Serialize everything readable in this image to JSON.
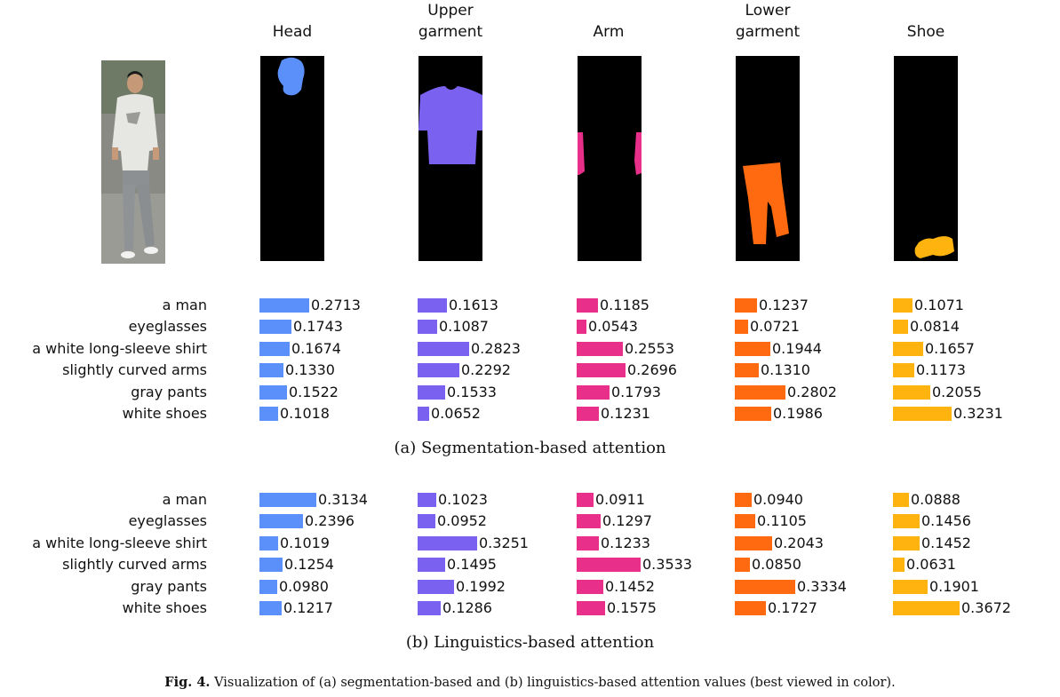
{
  "columns": [
    {
      "line1": "",
      "line2": "Head",
      "color": "#5B8FF9"
    },
    {
      "line1": "Upper",
      "line2": "garment",
      "color": "#7B61F0"
    },
    {
      "line1": "",
      "line2": "Arm",
      "color": "#E8308A"
    },
    {
      "line1": "Lower",
      "line2": "garment",
      "color": "#FF6A10"
    },
    {
      "line1": "",
      "line2": "Shoe",
      "color": "#FFB30F"
    }
  ],
  "caption": {
    "label": "Fig. 4.",
    "text": "Visualization of (a) segmentation-based and (b) linguistics-based attention values (best viewed in color)."
  },
  "chart_data": [
    {
      "type": "bar",
      "title": "(a) Segmentation-based attention",
      "categories": [
        "a man",
        "eyeglasses",
        "a white long-sleeve shirt",
        "slightly curved arms",
        "gray pants",
        "white shoes"
      ],
      "series": [
        {
          "name": "Head",
          "values": [
            "0.2713",
            "0.1743",
            "0.1674",
            "0.1330",
            "0.1522",
            "0.1018"
          ]
        },
        {
          "name": "Upper garment",
          "values": [
            "0.1613",
            "0.1087",
            "0.2823",
            "0.2292",
            "0.1533",
            "0.0652"
          ]
        },
        {
          "name": "Arm",
          "values": [
            "0.1185",
            "0.0543",
            "0.2553",
            "0.2696",
            "0.1793",
            "0.1231"
          ]
        },
        {
          "name": "Lower garment",
          "values": [
            "0.1237",
            "0.0721",
            "0.1944",
            "0.1310",
            "0.2802",
            "0.1986"
          ]
        },
        {
          "name": "Shoe",
          "values": [
            "0.1071",
            "0.0814",
            "0.1657",
            "0.1173",
            "0.2055",
            "0.3231"
          ]
        }
      ]
    },
    {
      "type": "bar",
      "title": "(b) Linguistics-based attention",
      "categories": [
        "a man",
        "eyeglasses",
        "a white long-sleeve shirt",
        "slightly curved arms",
        "gray pants",
        "white shoes"
      ],
      "series": [
        {
          "name": "Head",
          "values": [
            "0.3134",
            "0.2396",
            "0.1019",
            "0.1254",
            "0.0980",
            "0.1217"
          ]
        },
        {
          "name": "Upper garment",
          "values": [
            "0.1023",
            "0.0952",
            "0.3251",
            "0.1495",
            "0.1992",
            "0.1286"
          ]
        },
        {
          "name": "Arm",
          "values": [
            "0.0911",
            "0.1297",
            "0.1233",
            "0.3533",
            "0.1452",
            "0.1575"
          ]
        },
        {
          "name": "Lower garment",
          "values": [
            "0.0940",
            "0.1105",
            "0.2043",
            "0.0850",
            "0.3334",
            "0.1727"
          ]
        },
        {
          "name": "Shoe",
          "values": [
            "0.0888",
            "0.1456",
            "0.1452",
            "0.0631",
            "0.1901",
            "0.3672"
          ]
        }
      ]
    }
  ]
}
